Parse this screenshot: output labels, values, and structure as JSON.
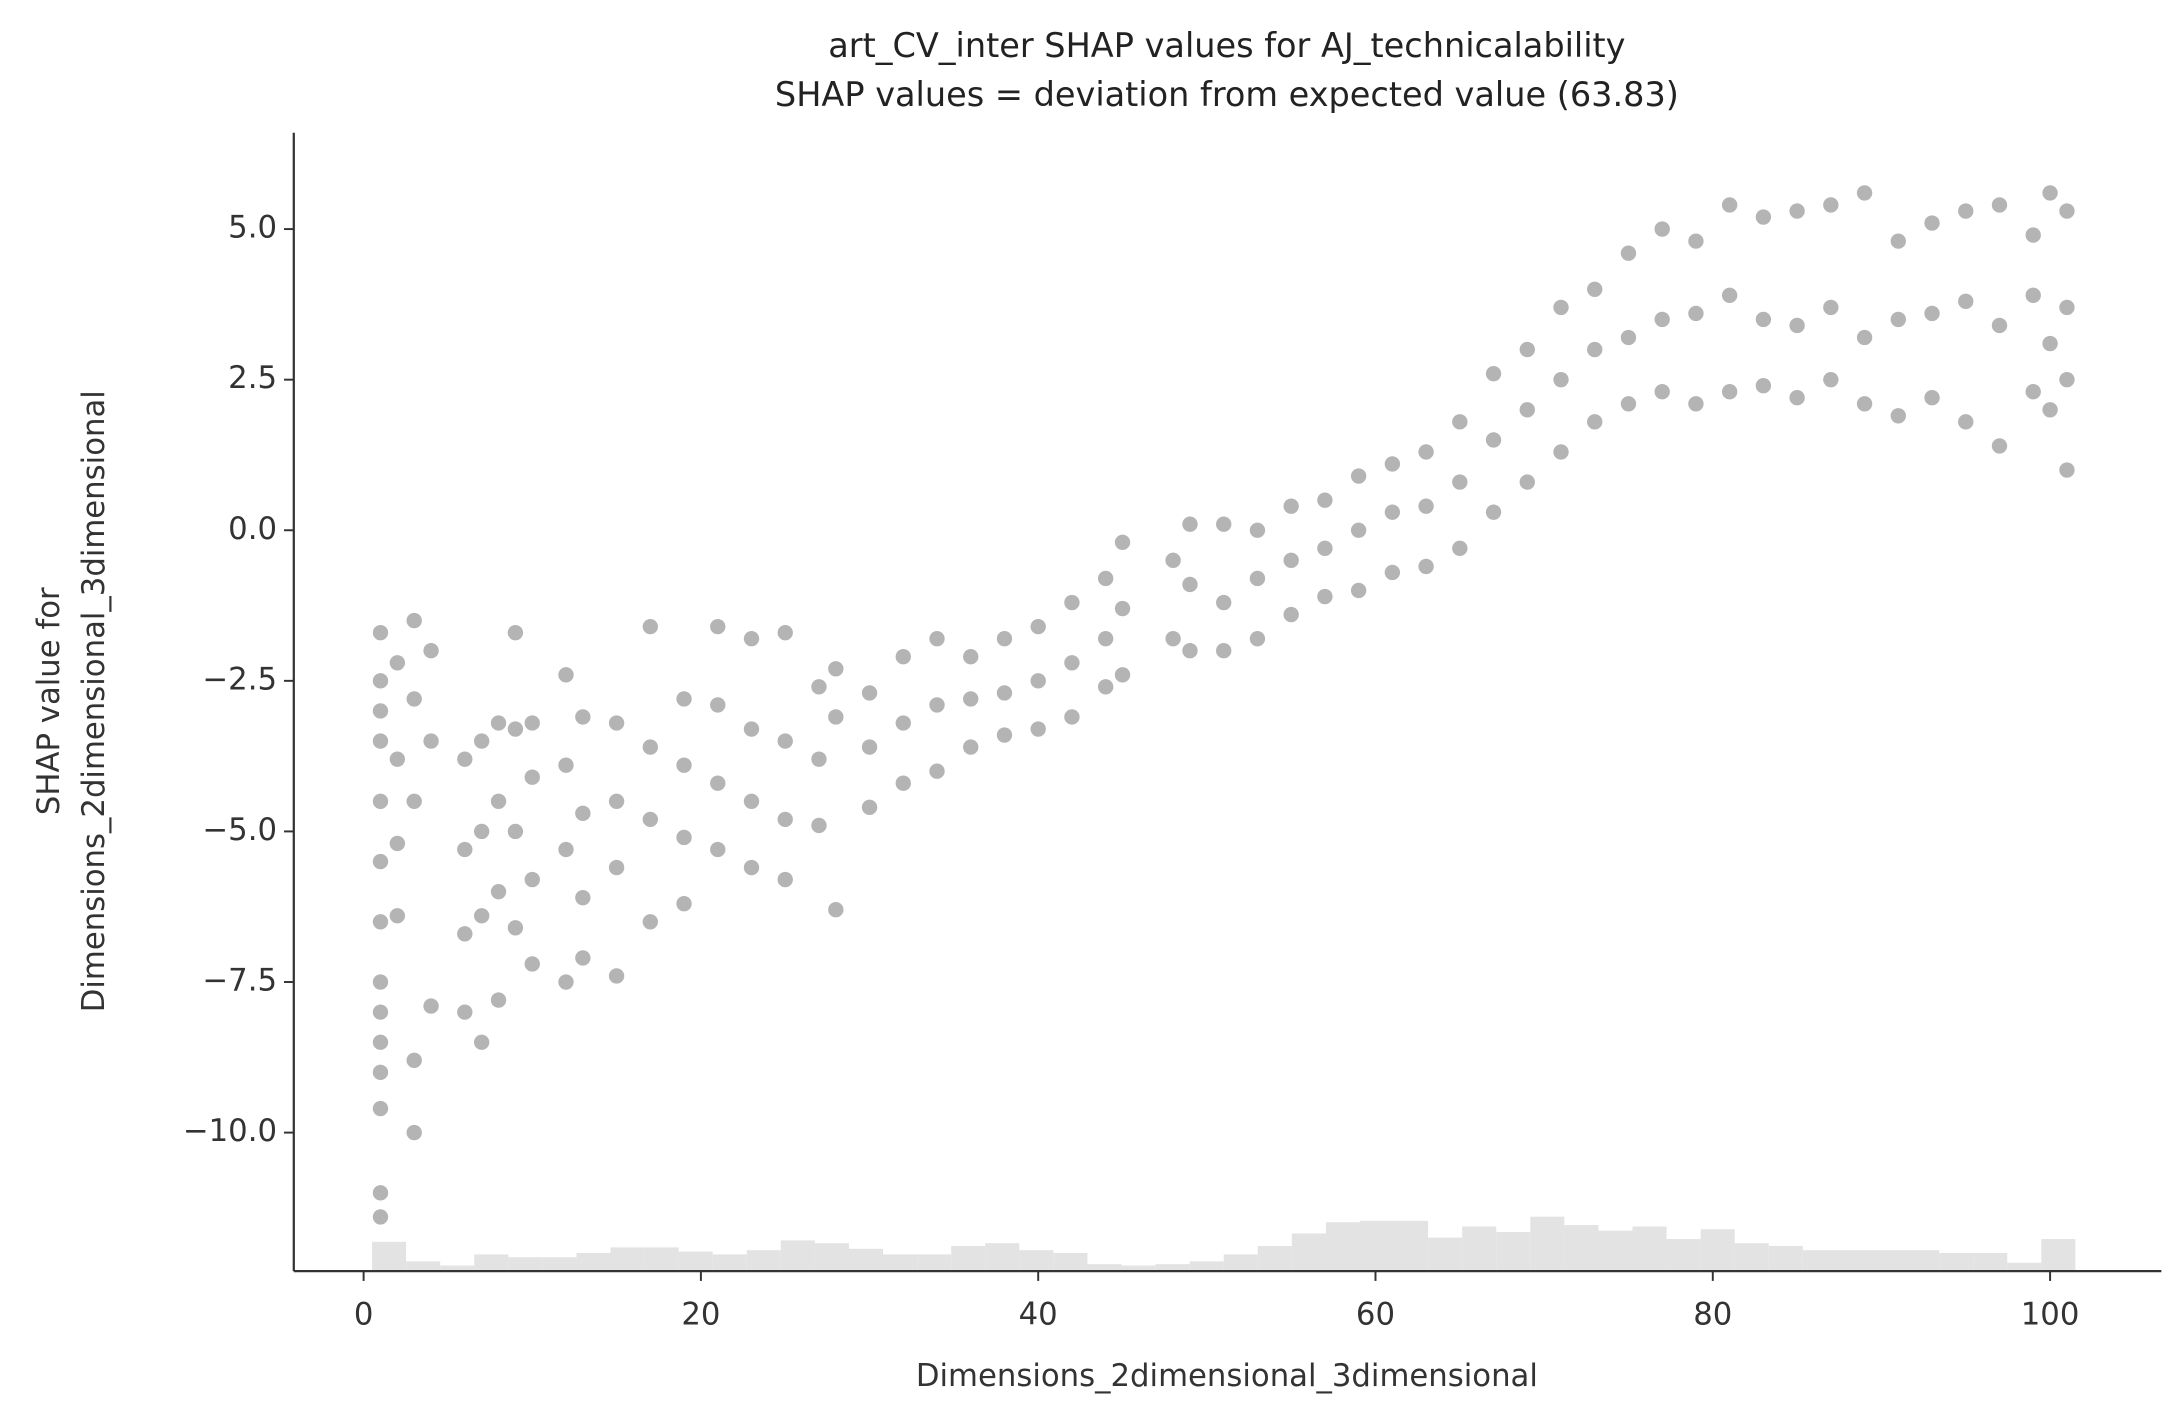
{
  "chart_data": {
    "type": "scatter",
    "title": "art_CV_inter SHAP values for AJ_technicalability",
    "subtitle": "SHAP values = deviation from expected value (63.83)",
    "xlabel": "Dimensions_2dimensional_3dimensional",
    "ylabel": [
      "SHAP value for",
      "Dimensions_2dimensional_3dimensional"
    ],
    "color": "#777777",
    "x": [
      1,
      1,
      1,
      1,
      1,
      1,
      1,
      1,
      1,
      1,
      1,
      1,
      1,
      1,
      2,
      2,
      2,
      2,
      3,
      3,
      3,
      3,
      3,
      4,
      4,
      4,
      6,
      6,
      6,
      6,
      7,
      7,
      7,
      7,
      8,
      8,
      8,
      8,
      9,
      9,
      9,
      9,
      10,
      10,
      10,
      10,
      12,
      12,
      12,
      12,
      13,
      13,
      13,
      13,
      15,
      15,
      15,
      15,
      17,
      17,
      17,
      17,
      19,
      19,
      19,
      19,
      21,
      21,
      21,
      21,
      23,
      23,
      23,
      23,
      25,
      25,
      25,
      25,
      27,
      27,
      27,
      28,
      28,
      28,
      30,
      30,
      30,
      32,
      32,
      32,
      34,
      34,
      34,
      36,
      36,
      36,
      38,
      38,
      38,
      40,
      40,
      40,
      42,
      42,
      42,
      44,
      44,
      44,
      45,
      45,
      45,
      48,
      48,
      49,
      49,
      49,
      51,
      51,
      51,
      53,
      53,
      53,
      55,
      55,
      55,
      57,
      57,
      57,
      59,
      59,
      59,
      61,
      61,
      61,
      63,
      63,
      63,
      65,
      65,
      65,
      67,
      67,
      67,
      69,
      69,
      69,
      71,
      71,
      71,
      73,
      73,
      73,
      75,
      75,
      75,
      77,
      77,
      77,
      79,
      79,
      79,
      81,
      81,
      81,
      83,
      83,
      83,
      85,
      85,
      85,
      87,
      87,
      87,
      89,
      89,
      89,
      91,
      91,
      91,
      93,
      93,
      93,
      95,
      95,
      95,
      97,
      97,
      97,
      99,
      99,
      99,
      100,
      100,
      100,
      101,
      101,
      101,
      101
    ],
    "values": [
      -1.7,
      -2.5,
      -3,
      -3.5,
      -4.5,
      -5.5,
      -6.5,
      -7.5,
      -8,
      -8.5,
      -9,
      -9.6,
      -11,
      -11.4,
      -2.2,
      -3.8,
      -5.2,
      -6.4,
      -1.5,
      -2.8,
      -4.5,
      -8.8,
      -10,
      -2,
      -3.5,
      -7.9,
      -3.8,
      -5.3,
      -6.7,
      -8,
      -3.5,
      -5,
      -6.4,
      -8.5,
      -3.2,
      -4.5,
      -6,
      -7.8,
      -1.7,
      -3.3,
      -5,
      -6.6,
      -3.2,
      -4.1,
      -5.8,
      -7.2,
      -2.4,
      -3.9,
      -5.3,
      -7.5,
      -3.1,
      -4.7,
      -6.1,
      -7.1,
      -3.2,
      -4.5,
      -5.6,
      -7.4,
      -1.6,
      -3.6,
      -4.8,
      -6.5,
      -2.8,
      -3.9,
      -5.1,
      -6.2,
      -1.6,
      -2.9,
      -4.2,
      -5.3,
      -1.8,
      -3.3,
      -4.5,
      -5.6,
      -1.7,
      -3.5,
      -4.8,
      -5.8,
      -2.6,
      -3.8,
      -4.9,
      -2.3,
      -3.1,
      -6.3,
      -2.7,
      -3.6,
      -4.6,
      -2.1,
      -3.2,
      -4.2,
      -1.8,
      -2.9,
      -4,
      -2.1,
      -2.8,
      -3.6,
      -1.8,
      -2.7,
      -3.4,
      -1.6,
      -2.5,
      -3.3,
      -1.2,
      -2.2,
      -3.1,
      -0.8,
      -1.8,
      -2.6,
      -0.2,
      -1.3,
      -2.4,
      -0.5,
      -1.8,
      0.1,
      -0.9,
      -2,
      0.1,
      -1.2,
      -2,
      0,
      -0.8,
      -1.8,
      0.4,
      -0.5,
      -1.4,
      0.5,
      -0.3,
      -1.1,
      0.9,
      0,
      -1,
      1.1,
      0.3,
      -0.7,
      1.3,
      0.4,
      -0.6,
      1.8,
      0.8,
      -0.3,
      2.6,
      1.5,
      0.3,
      3,
      2,
      0.8,
      3.7,
      2.5,
      1.3,
      4,
      3,
      1.8,
      4.6,
      3.2,
      2.1,
      5,
      3.5,
      2.3,
      4.8,
      3.6,
      2.1,
      5.4,
      3.9,
      2.3,
      5.2,
      3.5,
      2.4,
      5.3,
      3.4,
      2.2,
      5.4,
      3.7,
      2.5,
      5.6,
      3.2,
      2.1,
      4.8,
      3.5,
      1.9,
      5.1,
      3.6,
      2.2,
      5.3,
      3.8,
      1.8,
      5.4,
      3.4,
      1.4,
      4.9,
      3.9,
      2.3,
      5.6,
      3.1,
      2,
      5.3,
      3.7,
      2.5,
      1
    ],
    "histogram": {
      "color": "#e3e3e3",
      "bins": [
        0.5,
        2.52,
        4.54,
        6.56,
        8.58,
        10.6,
        12.62,
        14.64,
        16.66,
        18.68,
        20.7,
        22.72,
        24.74,
        26.76,
        28.78,
        30.8,
        32.82,
        34.84,
        36.86,
        38.88,
        40.9,
        42.92,
        44.94,
        46.96,
        48.98,
        51,
        53.02,
        55.04,
        57.06,
        59.08,
        61.1,
        63.12,
        65.14,
        67.16,
        69.18,
        71.2,
        73.22,
        75.24,
        77.26,
        79.28,
        81.3,
        83.32,
        85.34,
        87.36,
        89.38,
        91.4,
        93.42,
        95.44,
        97.46,
        99.48,
        101.5
      ],
      "counts": [
        21,
        7,
        4,
        12,
        10,
        10,
        13,
        17,
        17,
        14,
        12,
        15,
        22,
        20,
        16,
        12,
        12,
        18,
        20,
        15,
        13,
        5,
        4,
        5,
        7,
        12,
        18,
        27,
        35,
        36,
        36,
        24,
        32,
        28,
        39,
        33,
        29,
        32,
        23,
        30,
        20,
        18,
        15,
        15,
        15,
        15,
        13,
        13,
        6,
        23
      ]
    },
    "xlim": [
      -4.14,
      106.6
    ],
    "ylim": [
      -12.3,
      6.6
    ],
    "xticks": [
      0,
      20,
      40,
      60,
      80,
      100
    ],
    "yticks": [
      {
        "value": -10,
        "label": "−10.0"
      },
      {
        "value": -7.5,
        "label": "−7.5"
      },
      {
        "value": -5,
        "label": "−5.0"
      },
      {
        "value": -2.5,
        "label": "−2.5"
      },
      {
        "value": 0,
        "label": "0.0"
      },
      {
        "value": 2.5,
        "label": "2.5"
      },
      {
        "value": 5,
        "label": "5.0"
      }
    ]
  }
}
